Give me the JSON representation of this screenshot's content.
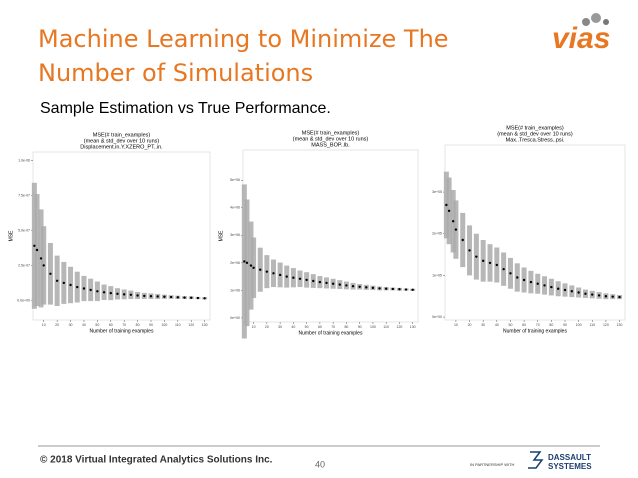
{
  "title": [
    "Machine Learning to Minimize The",
    "Number of Simulations"
  ],
  "subtitle": "Sample Estimation vs True Performance.",
  "logo": "vias",
  "footer": "© 2018 Virtual Integrated Analytics Solutions Inc.",
  "page_number": "40",
  "partner": [
    "IN PARTNERSHIP WITH",
    "DASSAULT",
    "SYSTEMES"
  ],
  "chart_data": [
    {
      "type": "errorbar",
      "title": [
        "MSE(# train_examples)",
        "(mean & std_dev over 10 runs)",
        "Displacement.in.Y.XZERO_PT..in."
      ],
      "xlabel": "Number of training examples",
      "ylabel": "MSE",
      "color": "#000000",
      "error_color": "#aaaaaa",
      "x": [
        3,
        5,
        8,
        10,
        15,
        20,
        25,
        30,
        35,
        40,
        45,
        50,
        55,
        60,
        65,
        70,
        75,
        80,
        85,
        90,
        95,
        100,
        105,
        110,
        115,
        120,
        125,
        130
      ],
      "values": [
        3.9e-07,
        3.6e-07,
        3e-07,
        2.5e-07,
        1.9e-07,
        1.4e-07,
        1.25e-07,
        1.1e-07,
        9.5e-08,
        8.5e-08,
        7.5e-08,
        6.5e-08,
        5.8e-08,
        5.2e-08,
        4.7e-08,
        4.3e-08,
        4e-08,
        3.5e-08,
        3.2e-08,
        3e-08,
        2.8e-08,
        2.6e-08,
        2.4e-08,
        2.2e-08,
        2e-08,
        1.9e-08,
        1.7e-08,
        1.5e-08
      ],
      "errors": [
        4.5e-07,
        4e-07,
        3.5e-07,
        2.8e-07,
        2.2e-07,
        1.8e-07,
        1.5e-07,
        1.3e-07,
        1.1e-07,
        9e-08,
        8e-08,
        7e-08,
        5.5e-08,
        5e-08,
        4e-08,
        3.5e-08,
        3e-08,
        2.5e-08,
        2.2e-08,
        2e-08,
        1.8e-08,
        1.5e-08,
        1.3e-08,
        1.2e-08,
        1e-08,
        1e-08,
        8e-09,
        8e-09
      ],
      "xlim": [
        2,
        134
      ],
      "xticks": [
        10,
        20,
        30,
        40,
        50,
        60,
        70,
        80,
        90,
        100,
        110,
        120,
        130
      ],
      "ylim": [
        -1.4e-07,
        1.06e-06
      ],
      "yticks": [
        {
          "value": 0,
          "label": "0.0e+00"
        },
        {
          "value": 2.5e-07,
          "label": "2.5e-07"
        },
        {
          "value": 5e-07,
          "label": "5.0e-07"
        },
        {
          "value": 7.5e-07,
          "label": "7.5e-07"
        },
        {
          "value": 1e-06,
          "label": "1.0e-06"
        }
      ]
    },
    {
      "type": "errorbar",
      "title": [
        "MSE(# train_examples)",
        "(mean & std_dev over 10 runs)",
        "MASS_BOP..lb."
      ],
      "xlabel": "Number of training examples",
      "ylabel": "MSE",
      "color": "#000000",
      "error_color": "#aaaaaa",
      "x": [
        3,
        5,
        8,
        10,
        15,
        20,
        25,
        30,
        35,
        40,
        45,
        50,
        55,
        60,
        65,
        70,
        75,
        80,
        85,
        90,
        95,
        100,
        105,
        110,
        115,
        120,
        125,
        130
      ],
      "values": [
        2050000.0,
        2000000.0,
        1900000.0,
        1820000.0,
        1750000.0,
        1680000.0,
        1620000.0,
        1560000.0,
        1500000.0,
        1460000.0,
        1420000.0,
        1380000.0,
        1340000.0,
        1300000.0,
        1270000.0,
        1240000.0,
        1210000.0,
        1180000.0,
        1150000.0,
        1130000.0,
        1110000.0,
        1090000.0,
        1070000.0,
        1060000.0,
        1050000.0,
        1040000.0,
        1030000.0,
        1020000.0
      ],
      "errors": [
        2800000.0,
        2300000.0,
        1600000.0,
        1100000.0,
        800000.0,
        600000.0,
        500000.0,
        450000.0,
        400000.0,
        350000.0,
        300000.0,
        280000.0,
        250000.0,
        220000.0,
        200000.0,
        180000.0,
        160000.0,
        140000.0,
        120000.0,
        100000.0,
        90000.0,
        80000.0,
        70000.0,
        60000.0,
        50000.0,
        50000.0,
        40000.0,
        40000.0
      ],
      "xlim": [
        2,
        134
      ],
      "xticks": [
        10,
        20,
        30,
        40,
        50,
        60,
        70,
        80,
        90,
        100,
        110,
        120,
        130
      ],
      "ylim": [
        -150000.0,
        6100000.0
      ],
      "yticks": [
        {
          "value": 0,
          "label": "0e+00"
        },
        {
          "value": 1000000.0,
          "label": "1e+06"
        },
        {
          "value": 2000000.0,
          "label": "2e+06"
        },
        {
          "value": 3000000.0,
          "label": "3e+06"
        },
        {
          "value": 4000000.0,
          "label": "4e+06"
        },
        {
          "value": 5000000.0,
          "label": "5e+06"
        }
      ]
    },
    {
      "type": "errorbar",
      "title": [
        "MSE(# train_examples)",
        "(mean & std_dev over 10 runs)",
        "Max..Tresca.Stress..psi."
      ],
      "xlabel": "Number of training examples",
      "color": "#000000",
      "error_color": "#aaaaaa",
      "x": [
        3,
        5,
        8,
        10,
        15,
        20,
        25,
        30,
        35,
        40,
        45,
        50,
        55,
        60,
        65,
        70,
        75,
        80,
        85,
        90,
        95,
        100,
        105,
        110,
        115,
        120,
        125,
        130
      ],
      "values": [
        269000.0,
        255000.0,
        230000.0,
        210000.0,
        185000.0,
        160000.0,
        145000.0,
        135000.0,
        130000.0,
        125000.0,
        115000.0,
        105000.0,
        95000.0,
        89000.0,
        84000.0,
        80000.0,
        76000.0,
        72000.0,
        68000.0,
        65000.0,
        62000.0,
        59000.0,
        56000.0,
        54000.0,
        52000.0,
        50000.0,
        49000.0,
        48000.0
      ],
      "errors": [
        80000.0,
        80000.0,
        75000.0,
        70000.0,
        65000.0,
        60000.0,
        55000.0,
        50000.0,
        45000.0,
        42000.0,
        40000.0,
        37000.0,
        34000.0,
        30000.0,
        27000.0,
        24000.0,
        22000.0,
        20000.0,
        18000.0,
        16000.0,
        14000.0,
        12000.0,
        10000.0,
        9000.0,
        8000.0,
        7000.0,
        6000.0,
        5000.0
      ],
      "xlim": [
        2,
        134
      ],
      "xticks": [
        10,
        20,
        30,
        40,
        50,
        60,
        70,
        80,
        90,
        100,
        110,
        120,
        130
      ],
      "ylim": [
        -7000.0,
        413000.0
      ],
      "yticks": [
        {
          "value": 0,
          "label": "0e+00"
        },
        {
          "value": 100000.0,
          "label": "1e+05"
        },
        {
          "value": 200000.0,
          "label": "2e+05"
        },
        {
          "value": 300000.0,
          "label": "3e+05"
        }
      ]
    }
  ]
}
